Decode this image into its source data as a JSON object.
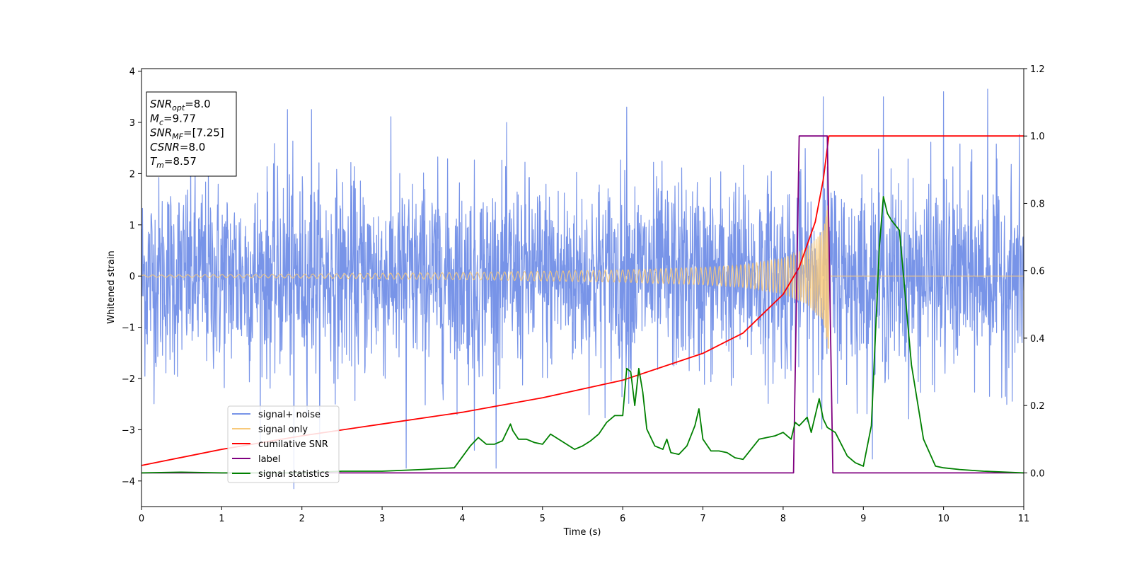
{
  "chart_data": {
    "type": "line",
    "title": "",
    "xlabel": "Time (s)",
    "ylabel": "Whitened strain",
    "y2label": "",
    "xlim": [
      0,
      11
    ],
    "ylim": [
      -4.5,
      4.05
    ],
    "y2lim": [
      -0.1,
      1.2
    ],
    "x_ticks": [
      0,
      1,
      2,
      3,
      4,
      5,
      6,
      7,
      8,
      9,
      10,
      11
    ],
    "y_ticks": [
      4,
      3,
      2,
      1,
      0,
      -1,
      -2,
      -3,
      -4
    ],
    "y2_ticks": [
      1.2,
      1.0,
      0.8,
      0.6,
      0.4,
      0.2,
      0.0
    ],
    "x_tick_labels": [
      "0",
      "1",
      "2",
      "3",
      "4",
      "5",
      "6",
      "7",
      "8",
      "9",
      "10",
      "11"
    ],
    "y_tick_labels": [
      "4",
      "3",
      "2",
      "1",
      "0",
      "−1",
      "−2",
      "−3",
      "−4"
    ],
    "y2_tick_labels": [
      "1.2",
      "1.0",
      "0.8",
      "0.6",
      "0.4",
      "0.2",
      "0.0"
    ],
    "grid": false,
    "legend_position": "lower-left",
    "annotation": {
      "position": "top-left",
      "lines": [
        {
          "base": "SNR",
          "sub": "opt",
          "value": "=8.0"
        },
        {
          "base": "M",
          "sub": "c",
          "value": "=9.77"
        },
        {
          "base": "SNR",
          "sub": "MF",
          "value": "=[7.25]"
        },
        {
          "base": "CSNR",
          "sub": "",
          "value": "=8.0"
        },
        {
          "base": "T",
          "sub": "m",
          "value": "=8.57"
        }
      ]
    },
    "series": [
      {
        "name": "signal+ noise",
        "axis": "left",
        "color": "#7894e8",
        "kind": "noise",
        "noise_envelope": {
          "typical_range": [
            -1.6,
            1.7
          ],
          "max": 3.65,
          "min": -4.15
        },
        "extreme_spikes": {
          "x": [
            1.82,
            1.9,
            2.12,
            3.3,
            4.15,
            6.05,
            8.5,
            9.25,
            10.0,
            10.55
          ],
          "y": [
            3.25,
            -4.15,
            3.25,
            -3.75,
            -3.4,
            3.3,
            3.5,
            3.5,
            3.6,
            3.65
          ]
        }
      },
      {
        "name": "signal only",
        "axis": "left",
        "color": "#f8c97a",
        "kind": "chirp",
        "t_merger": 8.57,
        "amplitude": {
          "x": [
            0,
            2,
            4,
            6,
            7,
            7.5,
            8,
            8.3,
            8.5,
            8.57
          ],
          "y": [
            0.02,
            0.04,
            0.07,
            0.12,
            0.17,
            0.22,
            0.35,
            0.55,
            0.9,
            1.5
          ]
        }
      },
      {
        "name": "cumilative SNR",
        "axis": "right",
        "color": "#ff0000",
        "x": [
          0,
          1,
          2,
          3,
          4,
          5,
          6,
          7,
          7.5,
          8,
          8.2,
          8.4,
          8.5,
          8.57,
          11
        ],
        "y": [
          0.022,
          0.07,
          0.11,
          0.145,
          0.18,
          0.223,
          0.275,
          0.355,
          0.415,
          0.53,
          0.61,
          0.745,
          0.87,
          1.0,
          1.0
        ]
      },
      {
        "name": "label",
        "axis": "right",
        "color": "#800080",
        "x": [
          0,
          8.13,
          8.2,
          8.55,
          8.62,
          11
        ],
        "y": [
          0.0,
          0.0,
          1.0,
          1.0,
          0.0,
          0.0
        ]
      },
      {
        "name": "signal statistics",
        "axis": "right",
        "color": "#008000",
        "x": [
          0,
          0.5,
          1,
          2,
          2.5,
          3,
          3.5,
          3.9,
          4.1,
          4.2,
          4.3,
          4.4,
          4.5,
          4.6,
          4.63,
          4.7,
          4.8,
          4.9,
          5.0,
          5.1,
          5.2,
          5.3,
          5.4,
          5.5,
          5.6,
          5.7,
          5.8,
          5.9,
          6.0,
          6.05,
          6.1,
          6.15,
          6.2,
          6.25,
          6.3,
          6.4,
          6.5,
          6.55,
          6.6,
          6.7,
          6.8,
          6.9,
          6.95,
          7.0,
          7.1,
          7.2,
          7.3,
          7.4,
          7.5,
          7.7,
          7.8,
          7.9,
          8.0,
          8.1,
          8.15,
          8.2,
          8.3,
          8.35,
          8.45,
          8.5,
          8.55,
          8.65,
          8.8,
          8.9,
          9.0,
          9.1,
          9.2,
          9.25,
          9.3,
          9.35,
          9.45,
          9.6,
          9.75,
          9.9,
          10.0,
          10.2,
          10.5,
          11.0
        ],
        "y": [
          0.0,
          0.002,
          0.0,
          0.0,
          0.005,
          0.005,
          0.01,
          0.015,
          0.08,
          0.105,
          0.085,
          0.085,
          0.095,
          0.145,
          0.125,
          0.1,
          0.1,
          0.09,
          0.085,
          0.115,
          0.1,
          0.085,
          0.07,
          0.08,
          0.095,
          0.115,
          0.15,
          0.17,
          0.17,
          0.31,
          0.3,
          0.2,
          0.31,
          0.24,
          0.13,
          0.08,
          0.07,
          0.1,
          0.06,
          0.055,
          0.08,
          0.14,
          0.19,
          0.1,
          0.065,
          0.065,
          0.06,
          0.045,
          0.04,
          0.1,
          0.105,
          0.11,
          0.12,
          0.1,
          0.15,
          0.14,
          0.165,
          0.12,
          0.22,
          0.16,
          0.135,
          0.12,
          0.05,
          0.03,
          0.02,
          0.14,
          0.67,
          0.82,
          0.77,
          0.75,
          0.72,
          0.32,
          0.1,
          0.02,
          0.015,
          0.01,
          0.005,
          0.0
        ]
      }
    ]
  }
}
